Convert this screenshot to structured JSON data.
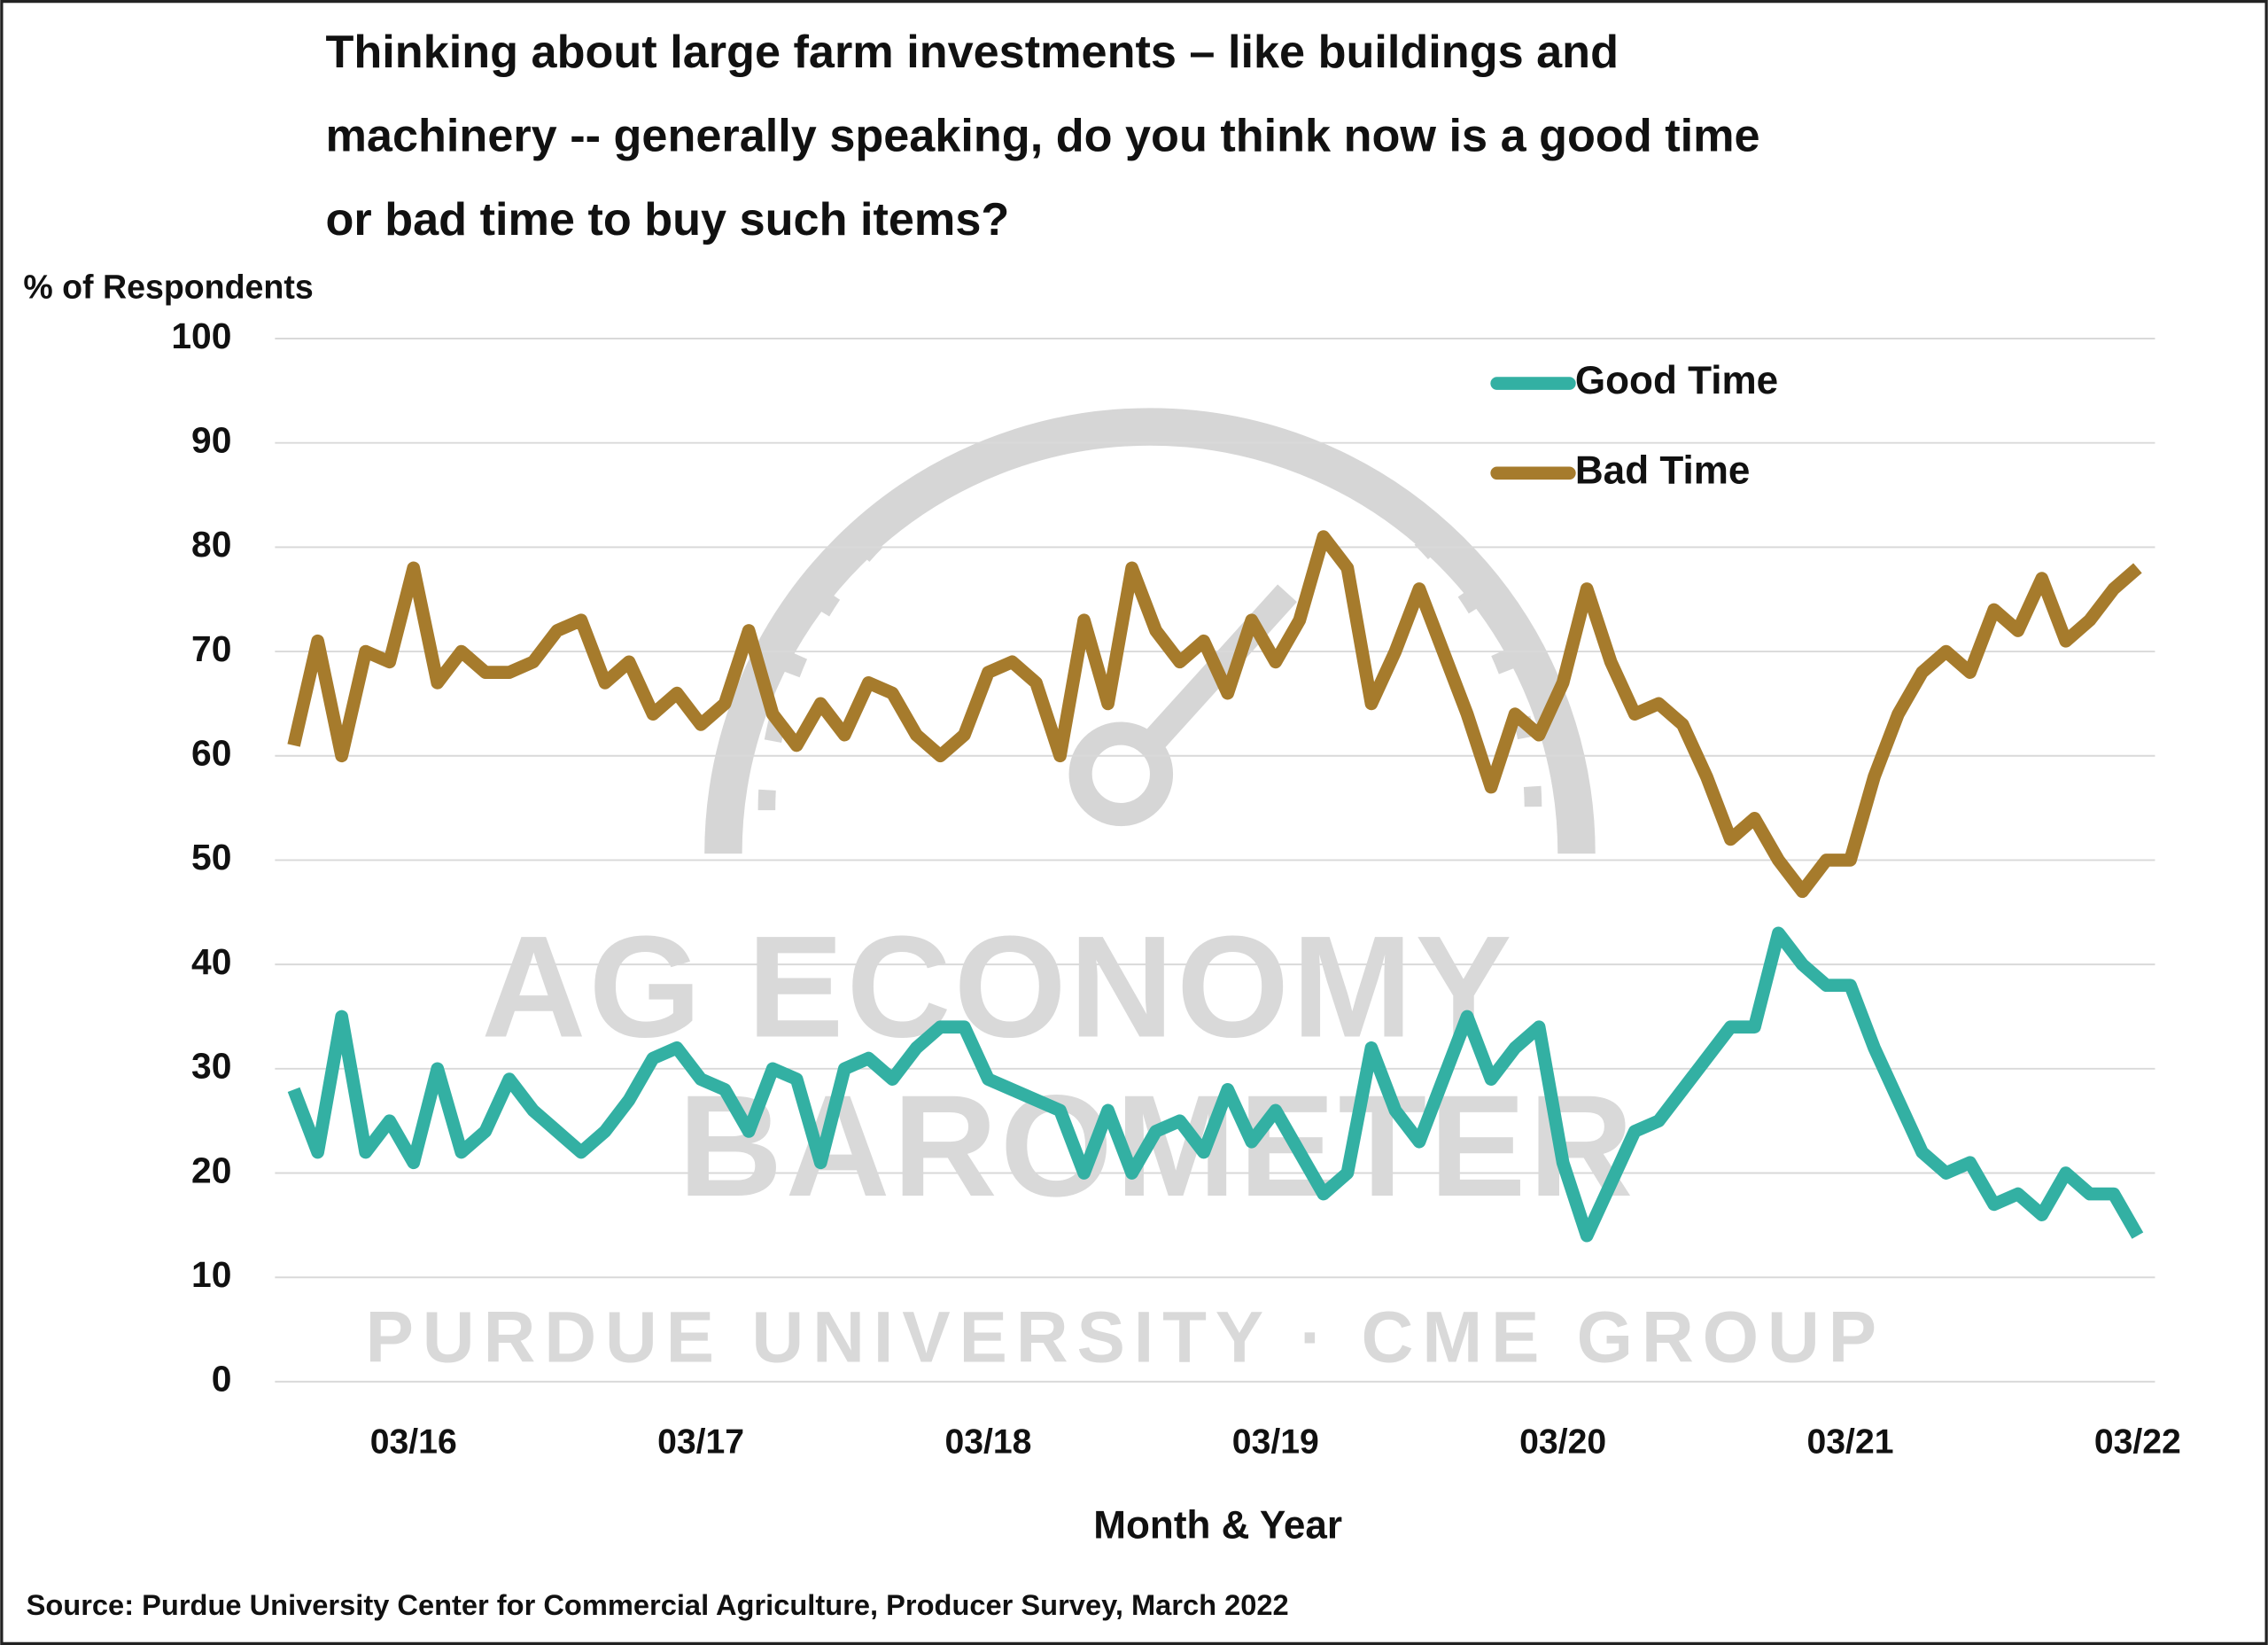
{
  "chart_data": {
    "type": "line",
    "title": [
      "Thinking about large farm investments – like buildings and",
      "machinery -- generally speaking, do you think now is a good time",
      "or bad time to buy such items?"
    ],
    "y_label": "% of Respondents",
    "x_label": "Month & Year",
    "source": "Source: Purdue University Center for Commercial Agriculture, Producer Survey, March 2022",
    "watermark": [
      "AG ECONOMY",
      "BAROMETER",
      "PURDUE UNIVERSITY · CME GROUP"
    ],
    "categories": [
      null,
      null,
      null,
      null,
      null,
      "03/16",
      null,
      null,
      null,
      null,
      null,
      null,
      null,
      null,
      null,
      null,
      null,
      "03/17",
      null,
      null,
      null,
      null,
      null,
      null,
      null,
      null,
      null,
      null,
      null,
      "03/18",
      null,
      null,
      null,
      null,
      null,
      null,
      null,
      null,
      null,
      null,
      null,
      "03/19",
      null,
      null,
      null,
      null,
      null,
      null,
      null,
      null,
      null,
      null,
      null,
      "03/20",
      null,
      null,
      null,
      null,
      null,
      null,
      null,
      null,
      null,
      null,
      null,
      "03/21",
      null,
      null,
      null,
      null,
      null,
      null,
      null,
      null,
      null,
      null,
      null,
      "03/22"
    ],
    "series": [
      {
        "name": "Good Time",
        "color": "#33b0a3",
        "values": [
          28,
          22,
          35,
          22,
          25,
          21,
          30,
          22,
          24,
          29,
          26,
          24,
          22,
          24,
          27,
          31,
          32,
          29,
          28,
          24,
          30,
          29,
          21,
          30,
          31,
          29,
          32,
          34,
          34,
          29,
          28,
          27,
          26,
          20,
          26,
          20,
          24,
          25,
          22,
          28,
          23,
          26,
          22,
          18,
          20,
          32,
          26,
          23,
          29,
          35,
          29,
          32,
          34,
          21,
          14,
          19,
          24,
          25,
          28,
          31,
          34,
          34,
          43,
          40,
          38,
          38,
          32,
          27,
          22,
          20,
          21,
          17,
          18,
          16,
          20,
          18,
          18,
          14
        ]
      },
      {
        "name": "Bad Time",
        "color": "#a67b2c",
        "values": [
          61,
          71,
          60,
          70,
          69,
          78,
          67,
          70,
          68,
          68,
          69,
          72,
          73,
          67,
          69,
          64,
          66,
          63,
          65,
          72,
          64,
          61,
          65,
          62,
          67,
          66,
          62,
          60,
          62,
          68,
          69,
          67,
          60,
          73,
          65,
          78,
          72,
          69,
          71,
          66,
          73,
          69,
          73,
          81,
          78,
          65,
          70,
          76,
          70,
          64,
          57,
          64,
          62,
          67,
          76,
          69,
          64,
          65,
          63,
          58,
          52,
          54,
          50,
          47,
          50,
          50,
          58,
          64,
          68,
          70,
          68,
          74,
          72,
          77,
          71,
          73,
          76,
          78
        ]
      }
    ],
    "ylim": [
      0,
      100
    ],
    "yticks": [
      0,
      10,
      20,
      30,
      40,
      50,
      60,
      70,
      80,
      90,
      100
    ],
    "grid": true,
    "legend": "upper right"
  }
}
